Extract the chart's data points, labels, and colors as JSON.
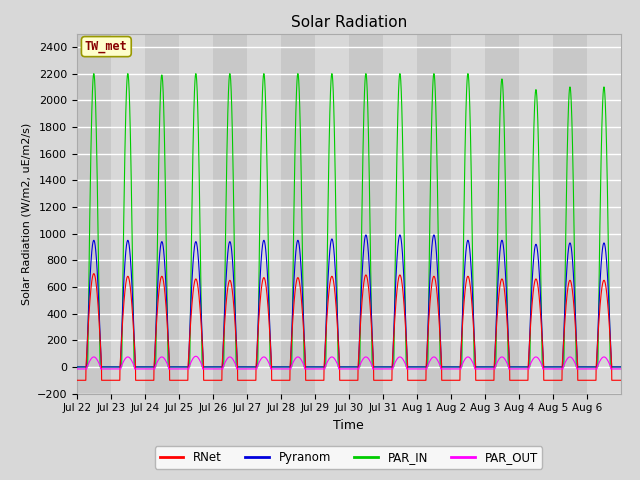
{
  "title": "Solar Radiation",
  "ylabel": "Solar Radiation (W/m2, uE/m2/s)",
  "xlabel": "Time",
  "ylim": [
    -200,
    2500
  ],
  "yticks": [
    -200,
    0,
    200,
    400,
    600,
    800,
    1000,
    1200,
    1400,
    1600,
    1800,
    2000,
    2200,
    2400
  ],
  "fig_bg_color": "#d8d8d8",
  "plot_bg_color": "#d8d8d8",
  "band_colors": [
    "#d0d0d0",
    "#c0c0c0"
  ],
  "annotation_box_color": "#ffffcc",
  "annotation_box_edge": "#999900",
  "annotation_text": "TW_met",
  "annotation_text_color": "#880000",
  "colors": {
    "RNet": "#ff0000",
    "Pyranom": "#0000dd",
    "PAR_IN": "#00cc00",
    "PAR_OUT": "#ff00ff"
  },
  "n_days": 16,
  "x_tick_labels": [
    "Jul 22",
    "Jul 23",
    "Jul 24",
    "Jul 25",
    "Jul 26",
    "Jul 27",
    "Jul 28",
    "Jul 29",
    "Jul 30",
    "Jul 31",
    "Aug 1",
    "Aug 2",
    "Aug 3",
    "Aug 4",
    "Aug 5",
    "Aug 6"
  ],
  "PAR_IN_peaks": [
    2200,
    2200,
    2190,
    2200,
    2200,
    2200,
    2200,
    2200,
    2200,
    2200,
    2200,
    2200,
    2160,
    2080,
    2100,
    2100
  ],
  "Pyranom_peaks": [
    950,
    950,
    940,
    940,
    940,
    950,
    950,
    960,
    990,
    990,
    990,
    950,
    950,
    920,
    930,
    930
  ],
  "RNet_peaks": [
    700,
    680,
    680,
    660,
    650,
    670,
    670,
    680,
    690,
    690,
    680,
    680,
    660,
    660,
    650,
    650
  ],
  "PAR_OUT_peaks": [
    75,
    75,
    75,
    80,
    75,
    75,
    75,
    75,
    75,
    75,
    75,
    75,
    75,
    75,
    75,
    75
  ],
  "RNet_night": -100,
  "PAR_OUT_night": -15,
  "points_per_day": 200
}
